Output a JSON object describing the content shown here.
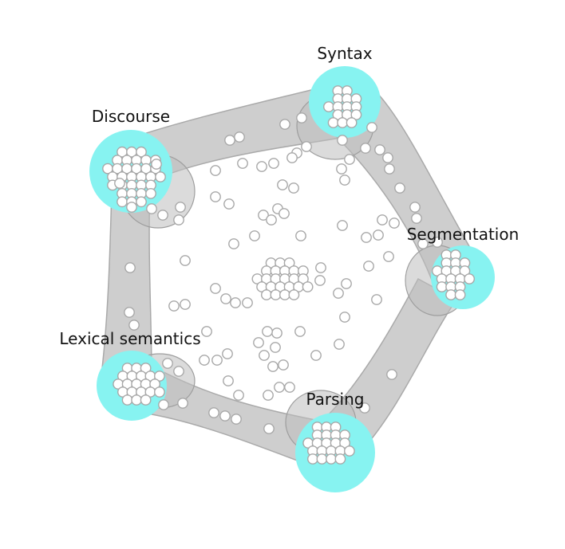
{
  "diagram": {
    "topics": [
      {
        "id": "syntax",
        "label": "Syntax"
      },
      {
        "id": "discourse",
        "label": "Discourse"
      },
      {
        "id": "segmentation",
        "label": "Segmentation"
      },
      {
        "id": "lexical",
        "label": "Lexical semantics"
      },
      {
        "id": "parsing",
        "label": "Parsing"
      }
    ],
    "colors": {
      "topic_fill": "#87f3f1",
      "band_fill": "#c6c6c6",
      "band_stroke": "#a9a9a9",
      "node_fill": "#ffffff",
      "node_stroke": "#a8a8a8"
    }
  }
}
